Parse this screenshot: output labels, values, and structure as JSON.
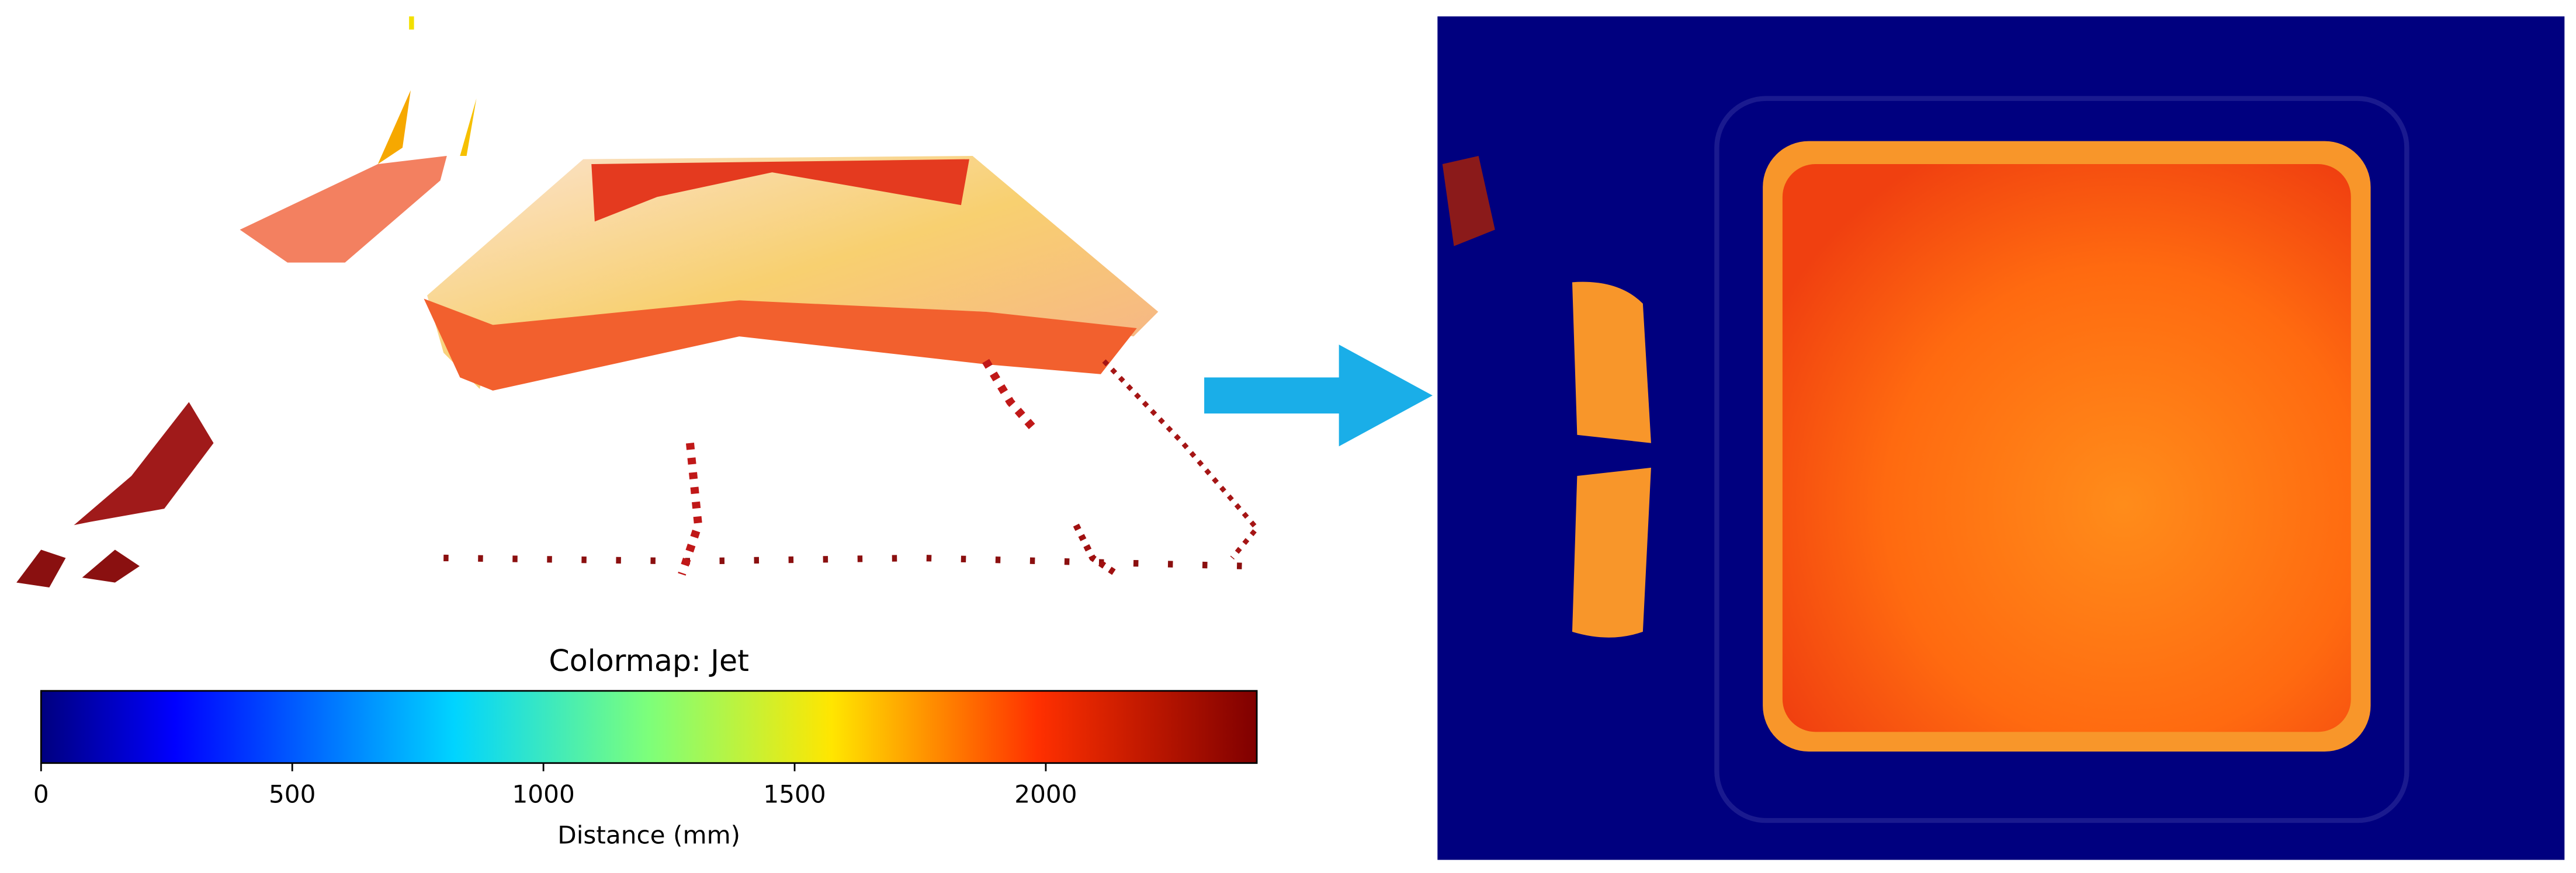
{
  "chart_data": {
    "type": "colorbar",
    "title": "Colormap: Jet",
    "xlabel": "Distance (mm)",
    "xlim": [
      0,
      2420
    ],
    "xticks": [
      0,
      500,
      1000,
      1500,
      2000
    ]
  }
}
